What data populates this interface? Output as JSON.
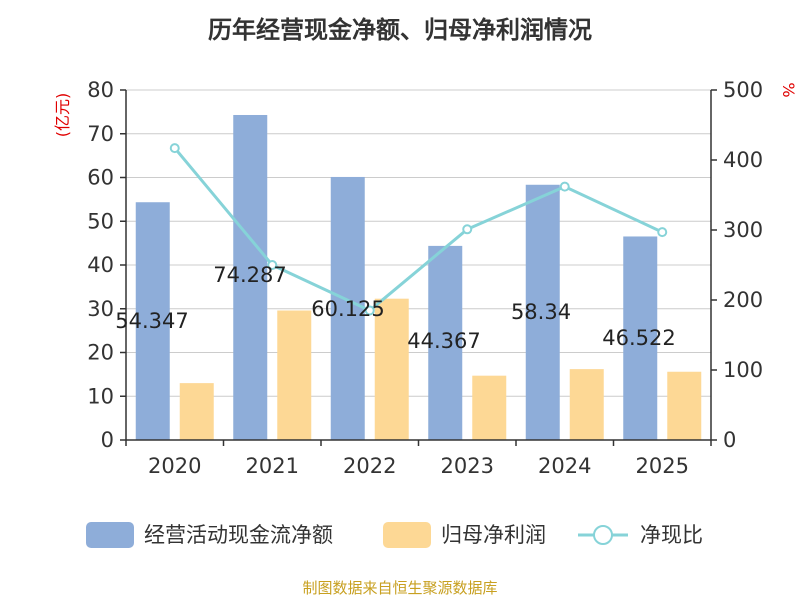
{
  "title": "历年经营现金净额、归母净利润情况",
  "source": "制图数据来自恒生聚源数据库",
  "colors": {
    "bar1": "#8eadd9",
    "bar2": "#fdd895",
    "line": "#86d3d8",
    "axis_label": "#e00000",
    "source": "#c8a020"
  },
  "chart_data": {
    "type": "bar",
    "title": "历年经营现金净额、归母净利润情况",
    "categories": [
      "2020",
      "2021",
      "2022",
      "2023",
      "2024",
      "2025"
    ],
    "ylabel": "(亿元)",
    "ylabel_right": "%",
    "ylim": [
      0,
      80
    ],
    "ylim_right": [
      0,
      500
    ],
    "yticks": [
      "0",
      "10",
      "20",
      "30",
      "40",
      "50",
      "60",
      "70",
      "80"
    ],
    "yticks_right": [
      "0",
      "100",
      "200",
      "300",
      "400",
      "500"
    ],
    "series": [
      {
        "name": "经营活动现金流净额",
        "kind": "bar",
        "axis": "left",
        "values": [
          54.347,
          74.287,
          60.125,
          44.367,
          58.34,
          46.522
        ],
        "labels": [
          "54.347",
          "74.287",
          "60.125",
          "44.367",
          "58.34",
          "46.522"
        ]
      },
      {
        "name": "归母净利润",
        "kind": "bar",
        "axis": "left",
        "values": [
          13.0,
          29.6,
          32.3,
          14.7,
          16.2,
          15.6
        ]
      },
      {
        "name": "净现比",
        "kind": "line",
        "axis": "right",
        "values": [
          417,
          250,
          185,
          301,
          362,
          297
        ]
      }
    ],
    "legend": [
      "经营活动现金流净额",
      "归母净利润",
      "净现比"
    ],
    "legend_position": "bottom"
  }
}
